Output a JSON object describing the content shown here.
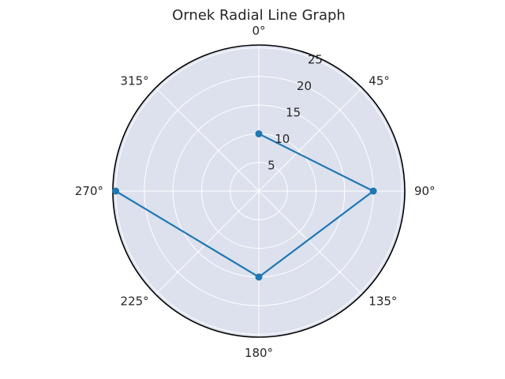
{
  "chart_data": {
    "type": "line",
    "projection": "polar",
    "title": "Ornek Radial Line Graph",
    "theta_direction": "clockwise",
    "theta_zero_location": "top",
    "theta_tick_labels": [
      "0°",
      "45°",
      "90°",
      "135°",
      "180°",
      "225°",
      "270°",
      "315°"
    ],
    "r_tick_labels": [
      "5",
      "10",
      "15",
      "20",
      "25"
    ],
    "r_ticks": [
      5,
      10,
      15,
      20,
      25
    ],
    "rlim": [
      0,
      25.5
    ],
    "grid": true,
    "series": [
      {
        "theta_deg": [
          0,
          90,
          180,
          270
        ],
        "r": [
          10,
          20,
          15,
          25
        ],
        "color": "#1f77b4",
        "marker": "circle"
      }
    ],
    "colors": {
      "plot_background": "#dce1ed",
      "grid": "#ffffff",
      "spine": "#000000",
      "line": "#1f77b4"
    }
  }
}
